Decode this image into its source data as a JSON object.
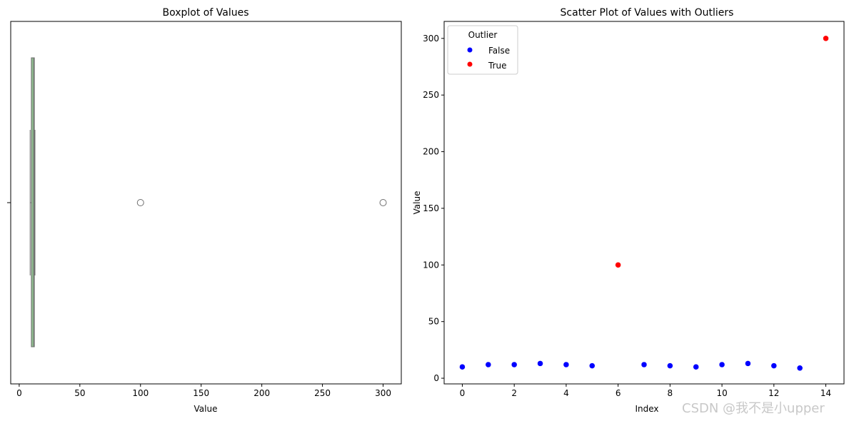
{
  "watermark": "CSDN @我不是小upper",
  "chart_data": [
    {
      "type": "boxplot",
      "title": "Boxplot of Values",
      "xlabel": "Value",
      "ylabel": "",
      "xlim": [
        -7,
        315
      ],
      "xticks": [
        0,
        50,
        100,
        150,
        200,
        250,
        300
      ],
      "box": {
        "whisker_low": 9,
        "q1": 10,
        "median": 12,
        "q3": 12.5,
        "whisker_high": 13,
        "outliers": [
          100,
          300
        ],
        "color": "#8fbc8f"
      }
    },
    {
      "type": "scatter",
      "title": "Scatter Plot of Values with Outliers",
      "xlabel": "Index",
      "ylabel": "Value",
      "xlim": [
        -0.7,
        14.7
      ],
      "ylim": [
        -5,
        315
      ],
      "xticks": [
        0,
        2,
        4,
        6,
        8,
        10,
        12,
        14
      ],
      "yticks": [
        0,
        50,
        100,
        150,
        200,
        250,
        300
      ],
      "legend": {
        "title": "Outlier",
        "position": "top-left"
      },
      "series": [
        {
          "name": "False",
          "color": "#0000ff",
          "points": [
            [
              0,
              10
            ],
            [
              1,
              12
            ],
            [
              2,
              12
            ],
            [
              3,
              13
            ],
            [
              4,
              12
            ],
            [
              5,
              11
            ],
            [
              7,
              12
            ],
            [
              8,
              11
            ],
            [
              9,
              10
            ],
            [
              10,
              12
            ],
            [
              11,
              13
            ],
            [
              12,
              11
            ],
            [
              13,
              9
            ]
          ]
        },
        {
          "name": "True",
          "color": "#ff0000",
          "points": [
            [
              6,
              100
            ],
            [
              14,
              300
            ]
          ]
        }
      ]
    }
  ]
}
